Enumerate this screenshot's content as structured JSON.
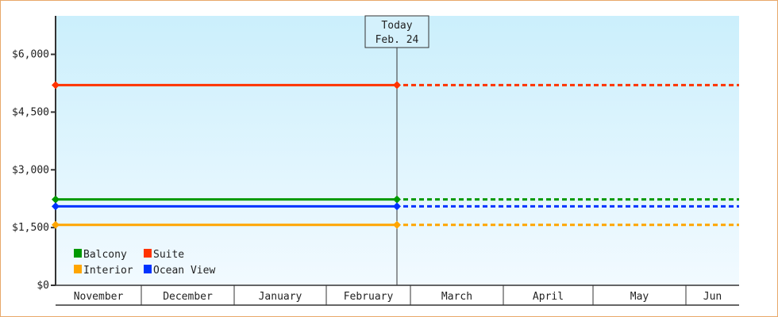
{
  "chart_data": {
    "type": "line",
    "title": "",
    "xlabel": "",
    "ylabel": "",
    "ylim": [
      0,
      7000
    ],
    "y_ticks": [
      0,
      1500,
      3000,
      4500,
      6000
    ],
    "y_tick_labels": [
      "$0",
      "$1,500",
      "$3,000",
      "$4,500",
      "$6,000"
    ],
    "x_categories": [
      "November",
      "December",
      "January",
      "February",
      "March",
      "April",
      "May",
      "Jun"
    ],
    "today_marker": {
      "line1": "Today",
      "line2": "Feb. 24"
    },
    "legend_placement": "bottom-left",
    "grid": false,
    "series": [
      {
        "name": "Balcony",
        "color": "#009900",
        "values": [
          2230,
          2230
        ],
        "projected": 2230
      },
      {
        "name": "Suite",
        "color": "#ff3300",
        "values": [
          5200,
          5200
        ],
        "projected": 5200
      },
      {
        "name": "Interior",
        "color": "#ffa500",
        "values": [
          1570,
          1570
        ],
        "projected": 1570
      },
      {
        "name": "Ocean View",
        "color": "#0033ff",
        "values": [
          2050,
          2050
        ],
        "projected": 2050
      }
    ],
    "legend_order": [
      "Balcony",
      "Suite",
      "Interior",
      "Ocean View"
    ],
    "background_gradient": [
      "#cbeffc",
      "#f2faff"
    ]
  }
}
